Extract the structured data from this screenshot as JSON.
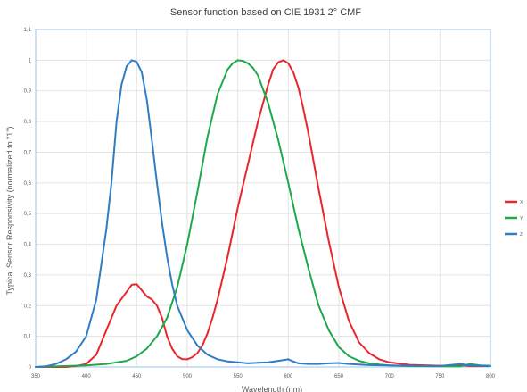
{
  "chart_data": {
    "type": "line",
    "title": "Sensor function based on CIE 1931 2° CMF",
    "xlabel": "Wavelength (nm)",
    "ylabel": "Typical Sensor Responsivity (normalized to \"1\")",
    "xlim": [
      350,
      800
    ],
    "ylim": [
      0,
      1.1
    ],
    "xticks": [
      "350",
      "400",
      "450",
      "500",
      "550",
      "600",
      "650",
      "700",
      "750",
      "800"
    ],
    "yticks": [
      "0",
      "0,1",
      "0,2",
      "0,3",
      "0,4",
      "0,5",
      "0,6",
      "0,7",
      "0,8",
      "0,9",
      "1",
      "1,1"
    ],
    "grid": true,
    "legend": "right",
    "series": [
      {
        "name": "X",
        "color": "#e8262b",
        "x": [
          350,
          380,
          390,
          400,
          410,
          420,
          430,
          440,
          445,
          450,
          455,
          460,
          465,
          470,
          475,
          480,
          485,
          490,
          495,
          500,
          505,
          510,
          515,
          520,
          525,
          530,
          540,
          550,
          560,
          570,
          580,
          585,
          590,
          595,
          600,
          605,
          610,
          615,
          620,
          630,
          640,
          650,
          660,
          670,
          680,
          690,
          700,
          720,
          750,
          770,
          780,
          800
        ],
        "y": [
          0,
          0,
          0.003,
          0.01,
          0.04,
          0.12,
          0.2,
          0.245,
          0.268,
          0.27,
          0.25,
          0.23,
          0.22,
          0.2,
          0.16,
          0.1,
          0.06,
          0.035,
          0.026,
          0.025,
          0.032,
          0.045,
          0.07,
          0.11,
          0.16,
          0.22,
          0.36,
          0.52,
          0.66,
          0.8,
          0.92,
          0.97,
          0.993,
          1.0,
          0.99,
          0.96,
          0.91,
          0.84,
          0.76,
          0.58,
          0.41,
          0.26,
          0.15,
          0.08,
          0.045,
          0.025,
          0.015,
          0.007,
          0.004,
          0.006,
          0.003,
          0.003
        ]
      },
      {
        "name": "Y",
        "color": "#1ea84a",
        "x": [
          350,
          400,
          420,
          440,
          450,
          460,
          470,
          480,
          490,
          500,
          510,
          520,
          530,
          540,
          545,
          550,
          555,
          560,
          565,
          570,
          580,
          590,
          600,
          610,
          620,
          630,
          640,
          650,
          660,
          670,
          680,
          690,
          700,
          720,
          750,
          770,
          780,
          790,
          800
        ],
        "y": [
          0,
          0.005,
          0.01,
          0.02,
          0.035,
          0.06,
          0.1,
          0.16,
          0.26,
          0.4,
          0.57,
          0.75,
          0.89,
          0.97,
          0.99,
          1.0,
          0.998,
          0.99,
          0.975,
          0.95,
          0.86,
          0.74,
          0.6,
          0.45,
          0.32,
          0.2,
          0.12,
          0.065,
          0.035,
          0.02,
          0.012,
          0.008,
          0.005,
          0.003,
          0.002,
          0.002,
          0.01,
          0.005,
          0.004
        ]
      },
      {
        "name": "Z",
        "color": "#2f7dc4",
        "x": [
          350,
          360,
          370,
          380,
          390,
          400,
          410,
          420,
          425,
          430,
          435,
          440,
          445,
          450,
          455,
          460,
          465,
          470,
          475,
          480,
          485,
          490,
          500,
          510,
          520,
          530,
          540,
          550,
          560,
          570,
          580,
          590,
          600,
          605,
          610,
          620,
          630,
          640,
          650,
          660,
          670,
          680,
          700,
          720,
          750,
          770,
          780,
          800
        ],
        "y": [
          0,
          0.002,
          0.01,
          0.025,
          0.05,
          0.1,
          0.22,
          0.45,
          0.6,
          0.8,
          0.92,
          0.98,
          1.0,
          0.995,
          0.96,
          0.87,
          0.74,
          0.6,
          0.47,
          0.36,
          0.27,
          0.2,
          0.12,
          0.07,
          0.04,
          0.025,
          0.018,
          0.015,
          0.012,
          0.014,
          0.015,
          0.02,
          0.025,
          0.018,
          0.012,
          0.01,
          0.01,
          0.012,
          0.013,
          0.01,
          0.008,
          0.006,
          0.005,
          0.004,
          0.003,
          0.01,
          0.005,
          0.003
        ]
      }
    ]
  }
}
